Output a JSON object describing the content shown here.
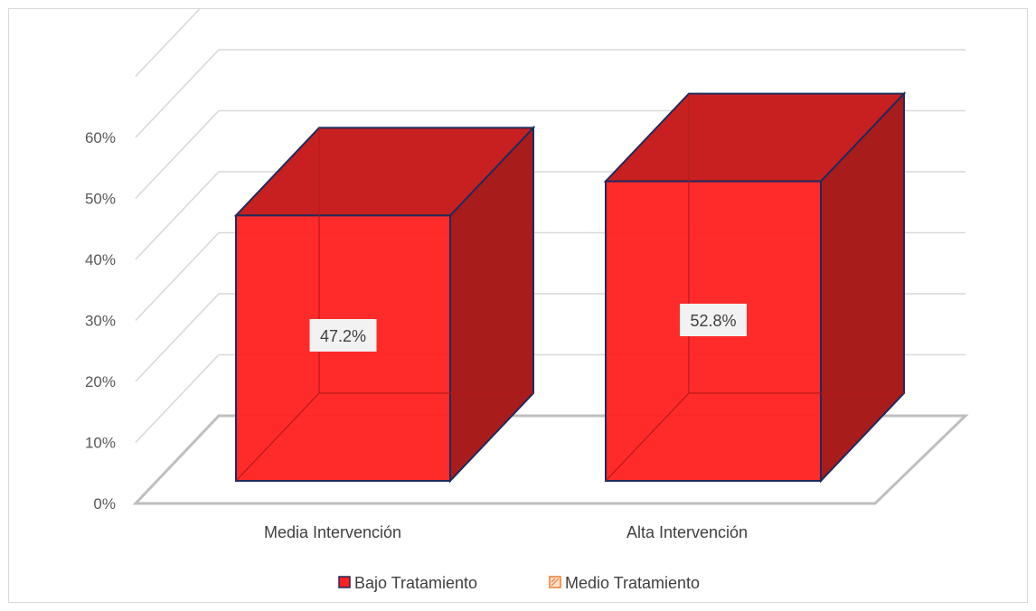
{
  "chart_data": {
    "type": "bar",
    "categories": [
      "Media Intervención",
      "Alta Intervención"
    ],
    "series": [
      {
        "name": "Bajo Tratamiento",
        "values": [
          47.2,
          52.8
        ],
        "color": "#ff2020"
      },
      {
        "name": "Medio Tratamiento",
        "values": [
          0,
          0
        ],
        "color": "#ed7d31"
      }
    ],
    "data_labels": [
      "47.2%",
      "52.8%"
    ],
    "yticks": [
      "0%",
      "10%",
      "20%",
      "30%",
      "40%",
      "50%",
      "60%"
    ],
    "ylim": [
      0,
      70
    ],
    "grid": true,
    "legend_position": "bottom",
    "style": "3d-column",
    "colors": {
      "front": "#ff2020",
      "top": "#c82020",
      "side": "#a81c1c",
      "edge": "#1f2a5c",
      "grid": "#d9d9d9",
      "floor": "#bfbfbf"
    }
  }
}
